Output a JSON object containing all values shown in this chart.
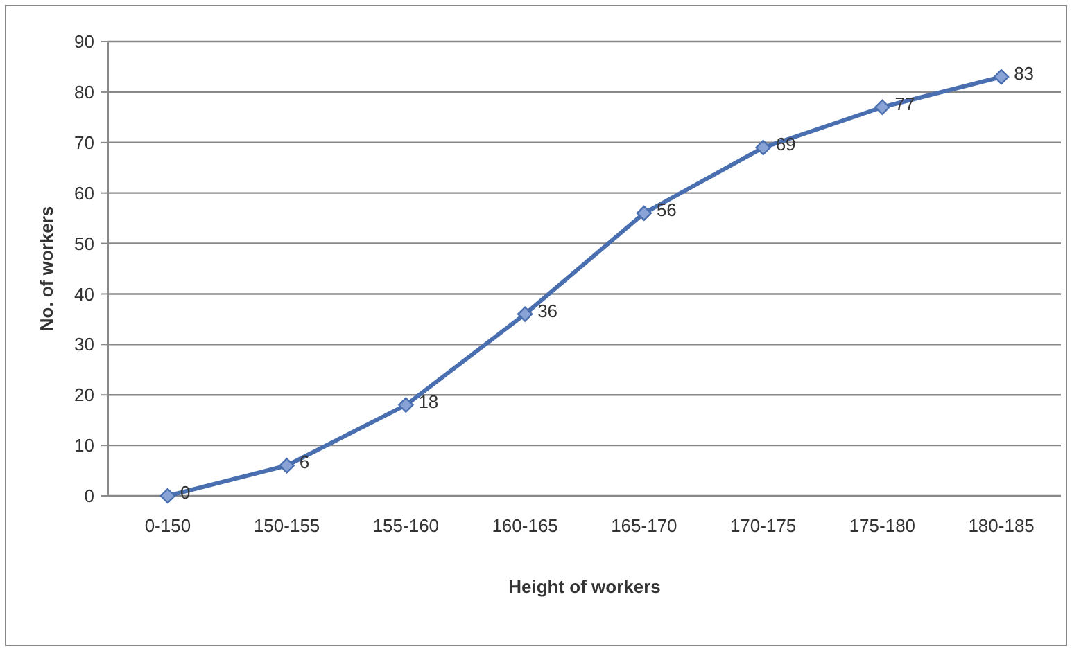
{
  "chart_data": {
    "type": "line",
    "xlabel": "Height of workers",
    "ylabel": "No. of workers",
    "categories": [
      "0-150",
      "150-155",
      "155-160",
      "160-165",
      "165-170",
      "170-175",
      "175-180",
      "180-185"
    ],
    "series": [
      {
        "color": "#4a6fb0",
        "values": [
          0,
          6,
          18,
          36,
          56,
          69,
          77,
          83
        ]
      }
    ],
    "ylim": [
      0,
      90
    ],
    "yticks": [
      0,
      10,
      20,
      30,
      40,
      50,
      60,
      70,
      80,
      90
    ],
    "grid": "y",
    "marker": "diamond",
    "line_style": "solid",
    "data_labels": true
  }
}
